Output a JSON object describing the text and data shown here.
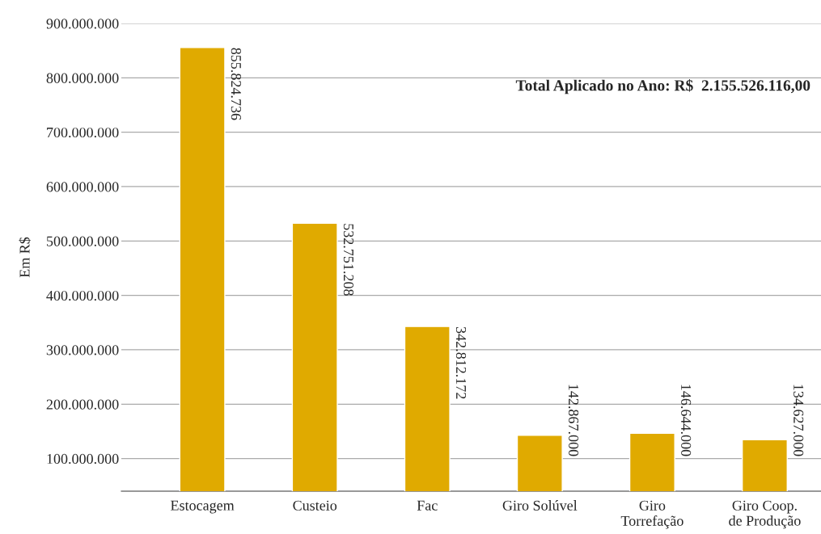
{
  "chart_data": {
    "type": "bar",
    "ylabel": "Em R$",
    "categories": [
      "Estocagem",
      "Custeio",
      "Fac",
      "Giro Solúvel",
      "Giro\nTorrefação",
      "Giro Coop.\nde Produção"
    ],
    "values": [
      855824736,
      532751208,
      342812172,
      142867000,
      146644000,
      134627000
    ],
    "value_labels": [
      "855.824.736",
      "532.751.208",
      "342.812.172",
      "142.867.000",
      "146.644.000",
      "134.627.000"
    ],
    "color": "#e0aa00",
    "ylim": [
      40000000,
      900000000
    ],
    "yticks": [
      {
        "value": 100000000,
        "label": "100.000.000"
      },
      {
        "value": 200000000,
        "label": "200.000.000"
      },
      {
        "value": 300000000,
        "label": "300.000.000"
      },
      {
        "value": 400000000,
        "label": "400.000.000"
      },
      {
        "value": 500000000,
        "label": "500.000.000"
      },
      {
        "value": 600000000,
        "label": "600.000.000"
      },
      {
        "value": 700000000,
        "label": "700.000.000"
      },
      {
        "value": 800000000,
        "label": "800.000.000"
      },
      {
        "value": 900000000,
        "label": "900.000.000"
      }
    ],
    "grid": "y",
    "annotations": [
      "Total Aplicado no Ano: R$  2.155.526.116,00"
    ]
  }
}
